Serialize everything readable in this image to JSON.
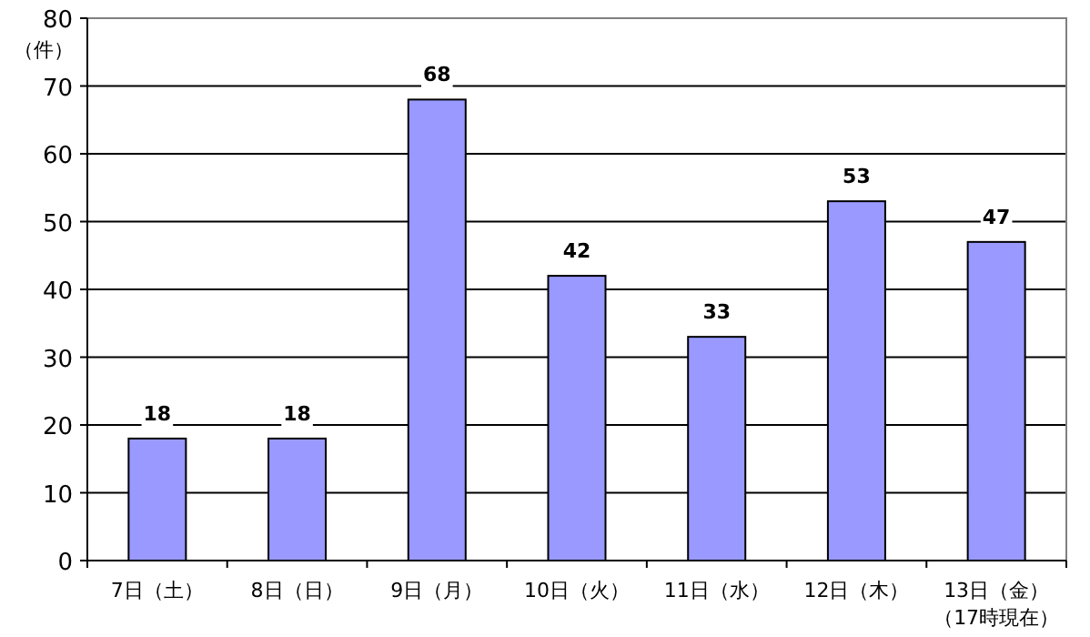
{
  "chart_data": {
    "type": "bar",
    "ylabel": "（件）",
    "categories": [
      "7日（土）",
      "8日（日）",
      "9日（月）",
      "10日（火）",
      "11日（水）",
      "12日（木）",
      "13日（金）（17時現在）"
    ],
    "values": [
      18,
      18,
      68,
      42,
      33,
      53,
      47
    ],
    "color": "#9999ff",
    "ylim": [
      0,
      80
    ],
    "yticks": [
      0,
      10,
      20,
      30,
      40,
      50,
      60,
      70,
      80
    ],
    "grid": "y",
    "data_labels": true
  }
}
